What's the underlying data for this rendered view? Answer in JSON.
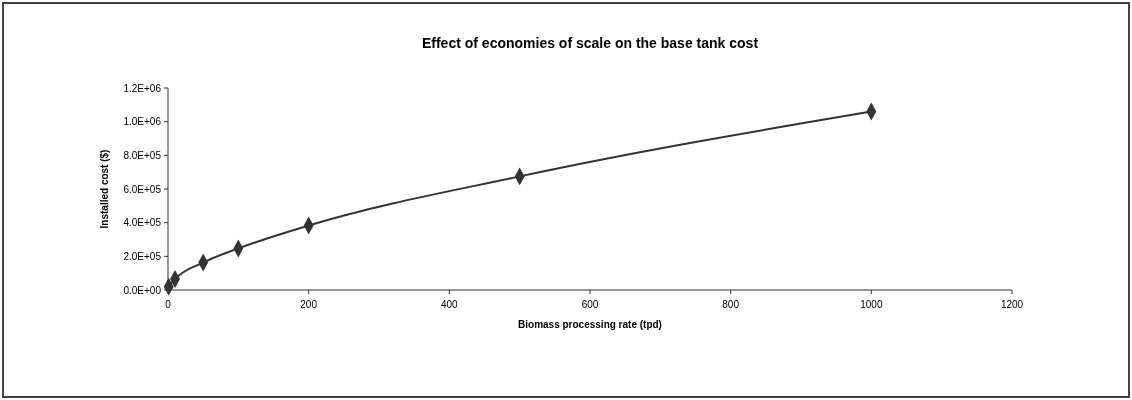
{
  "chart_data": {
    "type": "line",
    "title": "Effect of economies of scale on the base tank cost",
    "xlabel": "Biomass processing rate (tpd)",
    "ylabel": "Installed cost ($)",
    "x": [
      1,
      10,
      50,
      100,
      200,
      500,
      1000
    ],
    "series": [
      {
        "color": "#333333",
        "values": [
          20000,
          65000,
          163000,
          247000,
          383000,
          675000,
          1060000
        ]
      }
    ],
    "xlim": [
      0,
      1200
    ],
    "xticks": [
      0,
      200,
      400,
      600,
      800,
      1000,
      1200
    ],
    "ylim": [
      0,
      1200000
    ],
    "yticks": [
      {
        "value": 0,
        "label": "0.0E+00"
      },
      {
        "value": 200000,
        "label": "2.0E+05"
      },
      {
        "value": 400000,
        "label": "4.0E+05"
      },
      {
        "value": 600000,
        "label": "6.0E+05"
      },
      {
        "value": 800000,
        "label": "8.0E+05"
      },
      {
        "value": 1000000,
        "label": "1.0E+06"
      },
      {
        "value": 1200000,
        "label": "1.2E+06"
      }
    ],
    "marker": "diamond",
    "line_style": "solid",
    "grid": false
  }
}
